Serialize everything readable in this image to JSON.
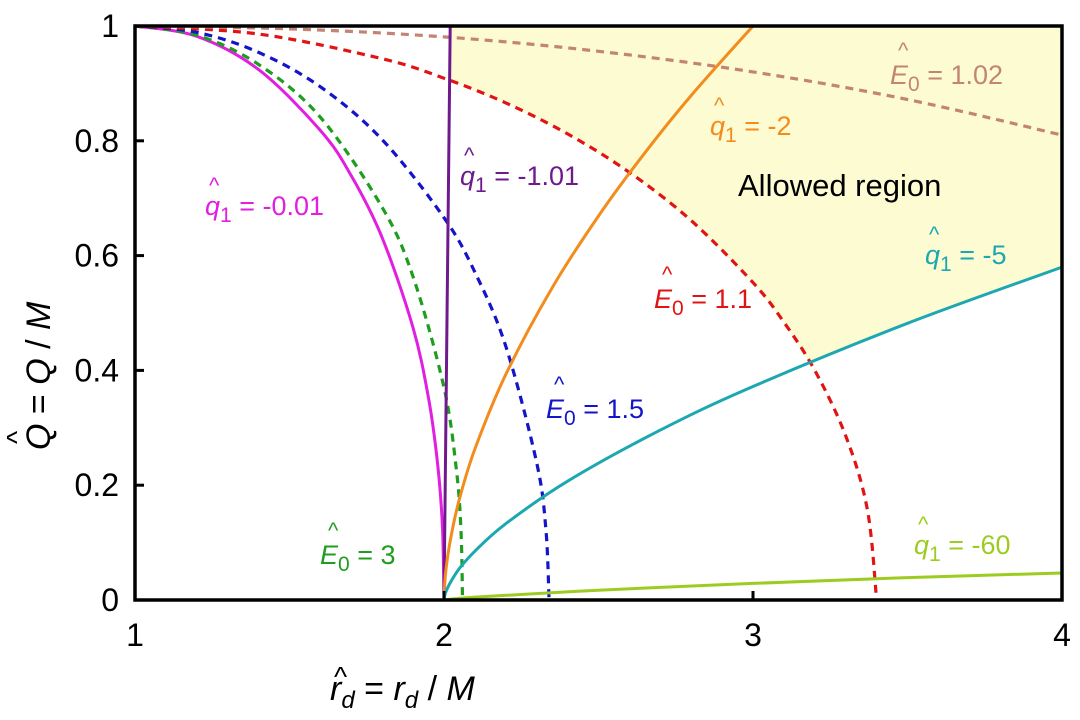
{
  "chart_data": {
    "type": "line",
    "xlabel": {
      "hat": "^",
      "sym": "r",
      "sub": "d",
      "rest": " = ",
      "sym2": "r",
      "sub2": "d",
      "rest2": " / ",
      "sym3": "M"
    },
    "ylabel": {
      "hat": "^",
      "sym": "Q",
      "rest": " = ",
      "sym2": "Q",
      "rest2": " / ",
      "sym3": "M"
    },
    "xlim": [
      1,
      4
    ],
    "ylim": [
      0,
      1
    ],
    "xticks": [
      "1",
      "2",
      "3",
      "4"
    ],
    "yticks": [
      "0",
      "0.2",
      "0.4",
      "0.6",
      "0.8",
      "1"
    ],
    "grid": false,
    "region": {
      "label": "Allowed region",
      "color": "#fdfbd2"
    },
    "series": [
      {
        "name": "q1 = -0.01",
        "style": "solid",
        "color": "#e01fe0",
        "label": {
          "sym": "q",
          "sub": "1",
          "rest": " = -0.01"
        },
        "points": [
          [
            1,
            1
          ],
          [
            1.2,
            0.982
          ],
          [
            1.4,
            0.924
          ],
          [
            1.6,
            0.818
          ],
          [
            1.7,
            0.739
          ],
          [
            1.8,
            0.631
          ],
          [
            1.9,
            0.474
          ],
          [
            1.95,
            0.351
          ],
          [
            1.98,
            0.234
          ],
          [
            1.995,
            0.126
          ],
          [
            2,
            0
          ]
        ]
      },
      {
        "name": "E0 = 3",
        "style": "dashed",
        "color": "#1e9e1e",
        "label": {
          "sym": "E",
          "sub": "0",
          "rest": " = 3"
        },
        "points": [
          [
            1,
            1
          ],
          [
            1.2,
            0.984
          ],
          [
            1.4,
            0.933
          ],
          [
            1.6,
            0.841
          ],
          [
            1.8,
            0.684
          ],
          [
            1.9,
            0.563
          ],
          [
            2,
            0.37
          ],
          [
            2.04,
            0.227
          ],
          [
            2.055,
            0.12
          ],
          [
            2.06,
            0
          ]
        ]
      },
      {
        "name": "E0 = 1.5",
        "style": "dashed",
        "color": "#1414c8",
        "label": {
          "sym": "E",
          "sub": "0",
          "rest": " = 1.5"
        },
        "points": [
          [
            1,
            1
          ],
          [
            1.2,
            0.989
          ],
          [
            1.4,
            0.954
          ],
          [
            1.6,
            0.894
          ],
          [
            1.8,
            0.802
          ],
          [
            2,
            0.666
          ],
          [
            2.1,
            0.571
          ],
          [
            2.2,
            0.442
          ],
          [
            2.3,
            0.239
          ],
          [
            2.33,
            0.121
          ],
          [
            2.34,
            0
          ]
        ]
      },
      {
        "name": "E0 = 1.1",
        "style": "dashed",
        "color": "#e01414",
        "label": {
          "sym": "E",
          "sub": "0",
          "rest": " = 1.1"
        },
        "points": [
          [
            1,
            1
          ],
          [
            1.4,
            0.986
          ],
          [
            1.8,
            0.943
          ],
          [
            2,
            0.909
          ],
          [
            2.2,
            0.866
          ],
          [
            2.4,
            0.812
          ],
          [
            2.6,
            0.745
          ],
          [
            2.8,
            0.661
          ],
          [
            3,
            0.553
          ],
          [
            3.1,
            0.484
          ],
          [
            3.2,
            0.4
          ],
          [
            3.3,
            0.286
          ],
          [
            3.37,
            0.158
          ],
          [
            3.4,
            0
          ]
        ]
      },
      {
        "name": "E0 = 1.02",
        "style": "dashed",
        "color": "#c48474",
        "label": {
          "sym": "E",
          "sub": "0",
          "rest": " = 1.02"
        },
        "points": [
          [
            1,
            1
          ],
          [
            1.5,
            0.995
          ],
          [
            2,
            0.981
          ],
          [
            2.5,
            0.956
          ],
          [
            3,
            0.92
          ],
          [
            3.5,
            0.872
          ],
          [
            4,
            0.81
          ]
        ]
      },
      {
        "name": "q1 = -1.01",
        "style": "solid",
        "color": "#6e1a8c",
        "label": {
          "sym": "q",
          "sub": "1",
          "rest": " = -1.01"
        },
        "points": [
          [
            2,
            0
          ],
          [
            2.02,
            1
          ]
        ]
      },
      {
        "name": "q1 = -2",
        "style": "solid",
        "color": "#f28c1c",
        "label": {
          "sym": "q",
          "sub": "1",
          "rest": " = -2"
        },
        "points": [
          [
            2,
            0
          ],
          [
            2.005,
            0.046
          ],
          [
            2.02,
            0.103
          ],
          [
            2.05,
            0.176
          ],
          [
            2.1,
            0.263
          ],
          [
            2.2,
            0.393
          ],
          [
            2.35,
            0.544
          ],
          [
            2.5,
            0.669
          ],
          [
            2.65,
            0.779
          ],
          [
            2.8,
            0.879
          ],
          [
            3,
            1
          ]
        ]
      },
      {
        "name": "q1 = -5",
        "style": "solid",
        "color": "#1ca8b0",
        "label": {
          "sym": "q",
          "sub": "1",
          "rest": " = -5"
        },
        "points": [
          [
            2,
            0
          ],
          [
            2.005,
            0.0125
          ],
          [
            2.02,
            0.03
          ],
          [
            2.05,
            0.055
          ],
          [
            2.1,
            0.085
          ],
          [
            2.2,
            0.133
          ],
          [
            2.4,
            0.207
          ],
          [
            2.7,
            0.296
          ],
          [
            3,
            0.372
          ],
          [
            3.5,
            0.482
          ],
          [
            4,
            0.58
          ]
        ]
      },
      {
        "name": "q1 = -60",
        "style": "solid",
        "color": "#9ccc22",
        "label": {
          "sym": "q",
          "sub": "1",
          "rest": " = -60"
        },
        "points": [
          [
            2,
            0
          ],
          [
            2.1,
            0.005
          ],
          [
            2.5,
            0.017
          ],
          [
            3,
            0.029
          ],
          [
            3.5,
            0.039
          ],
          [
            4,
            0.047
          ]
        ]
      }
    ]
  }
}
